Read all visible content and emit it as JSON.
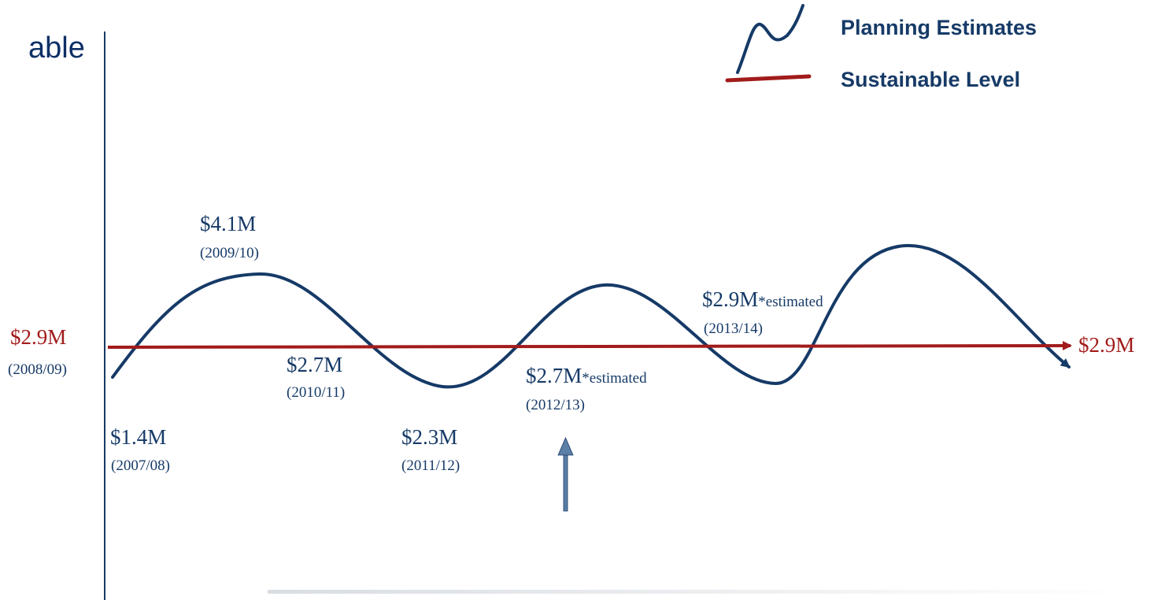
{
  "header": {
    "partial_title": "able"
  },
  "legend": {
    "planning_label": "Planning Estimates",
    "sustainable_label": "Sustainable Level",
    "planning_icon": "wave-line-icon",
    "sustainable_icon": "red-line-icon"
  },
  "colors": {
    "wave": "#163a67",
    "sustainable": "#a21b1b",
    "axis": "#163a67",
    "arrow": "#5b7fa6",
    "label_text": "#163a67"
  },
  "diagram": {
    "sustainable_left_value": "$2.9M",
    "sustainable_left_period": "(2008/09)",
    "sustainable_right_value": "$2.9M",
    "points": [
      {
        "value": "$1.4M",
        "period": "(2007/08)",
        "note": ""
      },
      {
        "value": "$4.1M",
        "period": "(2009/10)",
        "note": ""
      },
      {
        "value": "$2.7M",
        "period": "(2010/11)",
        "note": ""
      },
      {
        "value": "$2.3M",
        "period": "(2011/12)",
        "note": ""
      },
      {
        "value": "$2.7M",
        "period": "(2012/13)",
        "note": "*estimated"
      },
      {
        "value": "$2.9M",
        "period": "(2013/14)",
        "note": "*estimated"
      }
    ]
  }
}
